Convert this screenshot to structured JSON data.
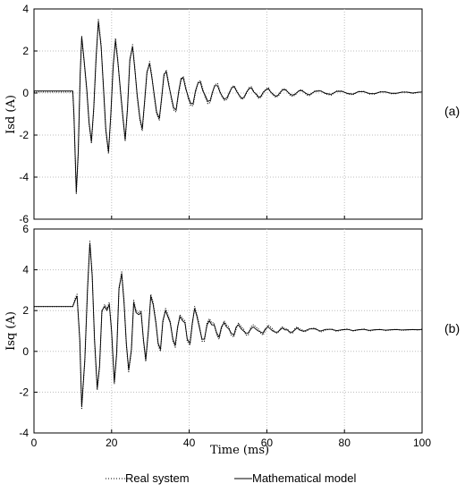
{
  "chart_data": [
    {
      "type": "line",
      "panel_label": "(a)",
      "ylabel": "Isd (A)",
      "xlabel": "",
      "xlim": [
        0,
        100
      ],
      "ylim": [
        -6,
        4
      ],
      "xticks": [
        0,
        20,
        40,
        60,
        80,
        100
      ],
      "yticks": [
        4,
        2,
        0,
        -2,
        -4,
        -6
      ],
      "grid": true,
      "series": [
        {
          "name": "Real system",
          "style": "dotted",
          "x": [
            0,
            10,
            10.3,
            10.9,
            11.4,
            11.9,
            12.3,
            12.9,
            13.6,
            14.2,
            14.8,
            15.4,
            16,
            16.6,
            17.3,
            17.9,
            18.5,
            19.2,
            19.8,
            20.4,
            21,
            21.6,
            22.3,
            22.9,
            23.5,
            24.1,
            24.7,
            25.4,
            26,
            26.6,
            27.3,
            27.9,
            28.5,
            29.1,
            29.8,
            30.4,
            31,
            31.6,
            32.3,
            32.9,
            33.5,
            34.1,
            34.8,
            35.4,
            36,
            36.6,
            37.3,
            37.9,
            38.5,
            39.1,
            39.8,
            40.4,
            41,
            41.6,
            42.3,
            42.9,
            43.5,
            44.1,
            44.8,
            45.4,
            46,
            46.6,
            47.3,
            47.9,
            48.5,
            49.1,
            49.8,
            50.4,
            51,
            51.6,
            52.3,
            52.9,
            53.5,
            54.1,
            54.8,
            55.4,
            56,
            56.6,
            57.3,
            57.9,
            58.5,
            59.1,
            59.8,
            60.4,
            61,
            61.6,
            62.3,
            62.9,
            63.5,
            64.1,
            64.8,
            65.4,
            66,
            66.6,
            67.3,
            67.9,
            68.5,
            69.1,
            69.8,
            70.4,
            71,
            72.4,
            73.8,
            75.2,
            76.6,
            78,
            79.4,
            80.8,
            82.2,
            83.6,
            85,
            86.4,
            87.8,
            89.2,
            90.6,
            92,
            93.4,
            94.8,
            96.2,
            97.6,
            99,
            100
          ],
          "y": [
            0.05,
            0.05,
            -1.2,
            -4.8,
            -3,
            0.8,
            2.6,
            1.5,
            0.1,
            -1.5,
            -2.4,
            -0.8,
            1.6,
            3.5,
            2.3,
            0.2,
            -1.8,
            -2.9,
            -1.1,
            1.2,
            2.6,
            1.6,
            0,
            -1.2,
            -2.3,
            -0.8,
            1.5,
            2.3,
            1.2,
            -0.2,
            -1.3,
            -1.8,
            -0.5,
            0.9,
            1.5,
            0.8,
            -0.2,
            -1,
            -1.3,
            -0.3,
            0.8,
            1.1,
            0.4,
            -0.3,
            -0.8,
            -0.9,
            0,
            0.6,
            0.8,
            0.3,
            -0.3,
            -0.6,
            -0.6,
            0,
            0.5,
            0.6,
            0.2,
            -0.2,
            -0.5,
            -0.45,
            0,
            0.4,
            0.45,
            0.1,
            -0.2,
            -0.35,
            -0.3,
            0,
            0.3,
            0.35,
            0.1,
            -0.15,
            -0.3,
            -0.25,
            0,
            0.25,
            0.3,
            0.1,
            -0.1,
            -0.25,
            -0.2,
            0,
            0.2,
            0.25,
            0.05,
            -0.1,
            -0.2,
            -0.15,
            0,
            0.2,
            0.2,
            0.05,
            -0.1,
            -0.15,
            -0.1,
            0.05,
            0.15,
            0.15,
            0,
            -0.1,
            -0.12,
            0.1,
            0.12,
            -0.05,
            -0.1,
            0.1,
            0.1,
            -0.05,
            -0.08,
            0.08,
            0.08,
            -0.05,
            -0.05,
            0.06,
            0.06,
            -0.03,
            -0.03,
            0.05,
            0.05,
            -0.02,
            0.03,
            0.05
          ]
        },
        {
          "name": "Mathematical model",
          "style": "solid",
          "x": [
            0,
            10,
            10.3,
            10.9,
            11.4,
            11.9,
            12.3,
            12.9,
            13.6,
            14.2,
            14.8,
            15.4,
            16,
            16.6,
            17.3,
            17.9,
            18.5,
            19.2,
            19.8,
            20.4,
            21,
            21.6,
            22.3,
            22.9,
            23.5,
            24.1,
            24.7,
            25.4,
            26,
            26.6,
            27.3,
            27.9,
            28.5,
            29.1,
            29.8,
            30.4,
            31,
            31.6,
            32.3,
            32.9,
            33.5,
            34.1,
            34.8,
            35.4,
            36,
            36.6,
            37.3,
            37.9,
            38.5,
            39.1,
            39.8,
            40.4,
            41,
            41.6,
            42.3,
            42.9,
            43.5,
            44.1,
            44.8,
            45.4,
            46,
            46.6,
            47.3,
            47.9,
            48.5,
            49.1,
            49.8,
            50.4,
            51,
            51.6,
            52.3,
            52.9,
            53.5,
            54.1,
            54.8,
            55.4,
            56,
            56.6,
            57.3,
            57.9,
            58.5,
            59.1,
            59.8,
            60.4,
            61,
            61.6,
            62.3,
            62.9,
            63.5,
            64.1,
            64.8,
            65.4,
            66,
            66.6,
            67.3,
            67.9,
            68.5,
            69.1,
            69.8,
            70.4,
            71,
            72.4,
            73.8,
            75.2,
            76.6,
            78,
            79.4,
            80.8,
            82.2,
            83.6,
            85,
            86.4,
            87.8,
            89.2,
            90.6,
            92,
            93.4,
            94.8,
            96.2,
            97.6,
            99,
            100
          ],
          "y": [
            0.1,
            0.1,
            -1,
            -4.7,
            -2.8,
            0.9,
            2.7,
            1.6,
            0.2,
            -1.4,
            -2.3,
            -0.7,
            1.7,
            3.4,
            2.2,
            0.3,
            -1.7,
            -2.8,
            -1,
            1.3,
            2.5,
            1.5,
            0.1,
            -1.1,
            -2.2,
            -0.7,
            1.6,
            2.2,
            1.1,
            -0.1,
            -1.2,
            -1.7,
            -0.4,
            1,
            1.4,
            0.7,
            -0.1,
            -0.9,
            -1.2,
            -0.2,
            0.9,
            1,
            0.3,
            -0.2,
            -0.7,
            -0.8,
            0.1,
            0.7,
            0.7,
            0.2,
            -0.2,
            -0.5,
            -0.5,
            0.1,
            0.5,
            0.5,
            0.1,
            -0.1,
            -0.4,
            -0.35,
            0.05,
            0.35,
            0.35,
            0.05,
            -0.15,
            -0.3,
            -0.2,
            0.05,
            0.25,
            0.3,
            0.05,
            -0.1,
            -0.25,
            -0.2,
            0.05,
            0.2,
            0.25,
            0.05,
            -0.05,
            -0.2,
            -0.15,
            0.05,
            0.15,
            0.2,
            0.05,
            -0.05,
            -0.15,
            -0.1,
            0.05,
            0.15,
            0.15,
            0.05,
            -0.05,
            -0.1,
            -0.05,
            0.05,
            0.12,
            0.1,
            0.02,
            -0.05,
            -0.08,
            0.08,
            0.1,
            -0.02,
            -0.06,
            0.08,
            0.08,
            -0.02,
            -0.05,
            0.06,
            0.06,
            -0.02,
            -0.03,
            0.05,
            0.05,
            -0.01,
            -0.01,
            0.04,
            0.04,
            0,
            0.04,
            0.05
          ]
        }
      ]
    },
    {
      "type": "line",
      "panel_label": "(b)",
      "ylabel": "Isq (A)",
      "xlabel": "Time (ms)",
      "xlim": [
        0,
        100
      ],
      "ylim": [
        -4,
        6
      ],
      "xticks": [
        0,
        20,
        40,
        60,
        80,
        100
      ],
      "yticks": [
        6,
        4,
        2,
        0,
        -2,
        -4
      ],
      "grid": true,
      "series": [
        {
          "name": "Real system",
          "style": "dotted",
          "x": [
            0,
            10,
            10.6,
            11.1,
            11.8,
            12.3,
            13.1,
            13.8,
            14.4,
            15,
            15.6,
            16.3,
            16.9,
            17.5,
            18.2,
            18.8,
            19.4,
            20,
            20.7,
            21.3,
            21.9,
            22.6,
            23.2,
            23.8,
            24.4,
            25.1,
            25.7,
            26.3,
            27,
            27.6,
            28.2,
            28.8,
            29.5,
            30.1,
            30.7,
            31.4,
            32,
            32.6,
            33.2,
            33.9,
            34.5,
            35.1,
            35.8,
            36.4,
            37,
            37.6,
            38.3,
            38.9,
            39.5,
            40.2,
            40.8,
            41.4,
            42,
            42.7,
            43.3,
            43.9,
            44.6,
            45.2,
            45.8,
            46.4,
            47.1,
            47.7,
            48.3,
            49,
            49.6,
            50.2,
            50.8,
            51.5,
            52.1,
            52.7,
            53.4,
            54,
            54.6,
            55.2,
            55.9,
            56.5,
            57.1,
            57.8,
            58.4,
            59,
            59.6,
            60.3,
            60.9,
            61.5,
            62.2,
            62.8,
            63.4,
            64,
            64.7,
            65.3,
            65.9,
            66.6,
            67.2,
            67.8,
            68.4,
            69.1,
            69.7,
            70.3,
            71,
            72.4,
            73.8,
            75.2,
            76.6,
            78,
            79.4,
            80.8,
            82.2,
            83.6,
            85,
            86.4,
            87.8,
            89.2,
            90.6,
            92,
            93.4,
            94.8,
            96.2,
            97.6,
            99,
            100
          ],
          "y": [
            2.2,
            2.2,
            2.6,
            2.8,
            0.5,
            -2.8,
            -0.5,
            3,
            5.4,
            3.8,
            0.5,
            -1.9,
            -0.8,
            1.9,
            2.3,
            2.1,
            2.4,
            0.9,
            -1.6,
            -0.2,
            3,
            3.9,
            2.5,
            0.3,
            -1,
            0,
            2.5,
            2,
            1.9,
            2,
            0.5,
            -0.5,
            1,
            2.8,
            2.4,
            1.5,
            0.3,
            0,
            1.4,
            2.1,
            1.8,
            1.5,
            0.5,
            0.2,
            1.1,
            1.8,
            1.6,
            1.5,
            0.5,
            0.3,
            1.3,
            2.2,
            1.8,
            1.2,
            0.5,
            0.5,
            1.4,
            1.6,
            1.4,
            1.4,
            0.8,
            0.6,
            1.1,
            1.5,
            1.3,
            1.2,
            0.8,
            0.7,
            1.1,
            1.4,
            1.2,
            1.1,
            0.8,
            0.8,
            1.2,
            1.3,
            1.2,
            1.1,
            0.9,
            0.8,
            1,
            1.3,
            1.2,
            1.1,
            0.9,
            0.9,
            1.1,
            1.2,
            1.1,
            1.1,
            0.9,
            0.9,
            1.1,
            1.2,
            1.1,
            1.05,
            0.95,
            1,
            1.1,
            1.15,
            0.95,
            1.05,
            1.1,
            0.98,
            1.05,
            1.1,
            1,
            1.05,
            1.1,
            1,
            1.05,
            1.08,
            1.02,
            1.05,
            1.08,
            1.03,
            1.05,
            1.07,
            1.05,
            1.08
          ]
        },
        {
          "name": "Mathematical model",
          "style": "solid",
          "x": [
            0,
            10,
            10.6,
            11.1,
            11.8,
            12.3,
            13.1,
            13.8,
            14.4,
            15,
            15.6,
            16.3,
            16.9,
            17.5,
            18.2,
            18.8,
            19.4,
            20,
            20.7,
            21.3,
            21.9,
            22.6,
            23.2,
            23.8,
            24.4,
            25.1,
            25.7,
            26.3,
            27,
            27.6,
            28.2,
            28.8,
            29.5,
            30.1,
            30.7,
            31.4,
            32,
            32.6,
            33.2,
            33.9,
            34.5,
            35.1,
            35.8,
            36.4,
            37,
            37.6,
            38.3,
            38.9,
            39.5,
            40.2,
            40.8,
            41.4,
            42,
            42.7,
            43.3,
            43.9,
            44.6,
            45.2,
            45.8,
            46.4,
            47.1,
            47.7,
            48.3,
            49,
            49.6,
            50.2,
            50.8,
            51.5,
            52.1,
            52.7,
            53.4,
            54,
            54.6,
            55.2,
            55.9,
            56.5,
            57.1,
            57.8,
            58.4,
            59,
            59.6,
            60.3,
            60.9,
            61.5,
            62.2,
            62.8,
            63.4,
            64,
            64.7,
            65.3,
            65.9,
            66.6,
            67.2,
            67.8,
            68.4,
            69.1,
            69.7,
            70.3,
            71,
            72.4,
            73.8,
            75.2,
            76.6,
            78,
            79.4,
            80.8,
            82.2,
            83.6,
            85,
            86.4,
            87.8,
            89.2,
            90.6,
            92,
            93.4,
            94.8,
            96.2,
            97.6,
            99,
            100
          ],
          "y": [
            2.2,
            2.2,
            2.5,
            2.7,
            0.6,
            -2.7,
            -0.4,
            3.1,
            5.3,
            3.7,
            0.6,
            -1.8,
            -0.7,
            2,
            2.2,
            2,
            2.3,
            1,
            -1.5,
            -0.1,
            3.1,
            3.8,
            2.4,
            0.4,
            -0.9,
            0.1,
            2.4,
            1.9,
            1.8,
            1.9,
            0.6,
            -0.4,
            1.1,
            2.7,
            2.3,
            1.4,
            0.4,
            0.1,
            1.5,
            2,
            1.7,
            1.4,
            0.6,
            0.3,
            1.2,
            1.7,
            1.5,
            1.4,
            0.6,
            0.4,
            1.4,
            2.1,
            1.7,
            1.1,
            0.6,
            0.6,
            1.3,
            1.5,
            1.3,
            1.3,
            0.9,
            0.7,
            1.2,
            1.4,
            1.2,
            1.1,
            0.9,
            0.8,
            1.2,
            1.3,
            1.1,
            1,
            0.9,
            0.9,
            1.1,
            1.2,
            1.1,
            1,
            0.95,
            0.9,
            1.1,
            1.2,
            1.1,
            1,
            0.95,
            0.95,
            1.05,
            1.15,
            1.05,
            1.05,
            0.95,
            0.95,
            1.05,
            1.15,
            1.05,
            1,
            1,
            1.05,
            1.1,
            1.1,
            1,
            1.08,
            1.08,
            1.02,
            1.06,
            1.08,
            1.02,
            1.06,
            1.08,
            1.03,
            1.06,
            1.07,
            1.04,
            1.06,
            1.07,
            1.05,
            1.06,
            1.07,
            1.06,
            1.08
          ]
        }
      ]
    }
  ],
  "legend": {
    "placement": "bottom-center",
    "entries": [
      {
        "label": "Real system",
        "style": "dotted"
      },
      {
        "label": "Mathematical model",
        "style": "solid"
      }
    ]
  },
  "colors": {
    "line": "#000000",
    "grid": "#bdbdbd",
    "axes": "#000000",
    "background": "#ffffff"
  }
}
